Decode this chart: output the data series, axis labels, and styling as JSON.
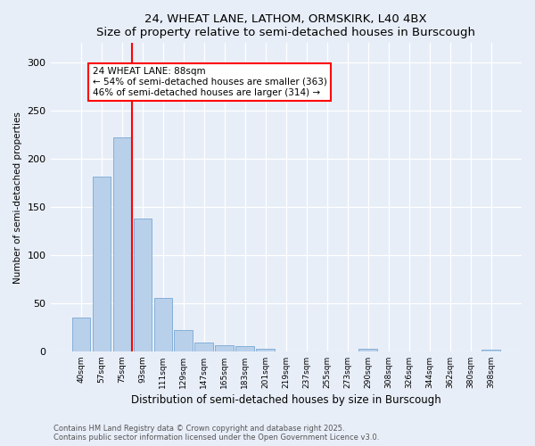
{
  "title": "24, WHEAT LANE, LATHOM, ORMSKIRK, L40 4BX",
  "subtitle": "Size of property relative to semi-detached houses in Burscough",
  "xlabel": "Distribution of semi-detached houses by size in Burscough",
  "ylabel": "Number of semi-detached properties",
  "categories": [
    "40sqm",
    "57sqm",
    "75sqm",
    "93sqm",
    "111sqm",
    "129sqm",
    "147sqm",
    "165sqm",
    "183sqm",
    "201sqm",
    "219sqm",
    "237sqm",
    "255sqm",
    "273sqm",
    "290sqm",
    "308sqm",
    "326sqm",
    "344sqm",
    "362sqm",
    "380sqm",
    "398sqm"
  ],
  "values": [
    35,
    181,
    222,
    138,
    55,
    22,
    9,
    6,
    5,
    3,
    0,
    0,
    0,
    0,
    3,
    0,
    0,
    0,
    0,
    0,
    2
  ],
  "bar_color": "#b8d0ea",
  "bar_edge_color": "#7aa8d4",
  "vline_x": 2.5,
  "vline_color": "red",
  "annotation_text": "24 WHEAT LANE: 88sqm\n← 54% of semi-detached houses are smaller (363)\n46% of semi-detached houses are larger (314) →",
  "ylim": [
    0,
    320
  ],
  "yticks": [
    0,
    50,
    100,
    150,
    200,
    250,
    300
  ],
  "footer": "Contains HM Land Registry data © Crown copyright and database right 2025.\nContains public sector information licensed under the Open Government Licence v3.0.",
  "bg_color": "#e8eef8",
  "plot_bg_color": "#e8eef8"
}
